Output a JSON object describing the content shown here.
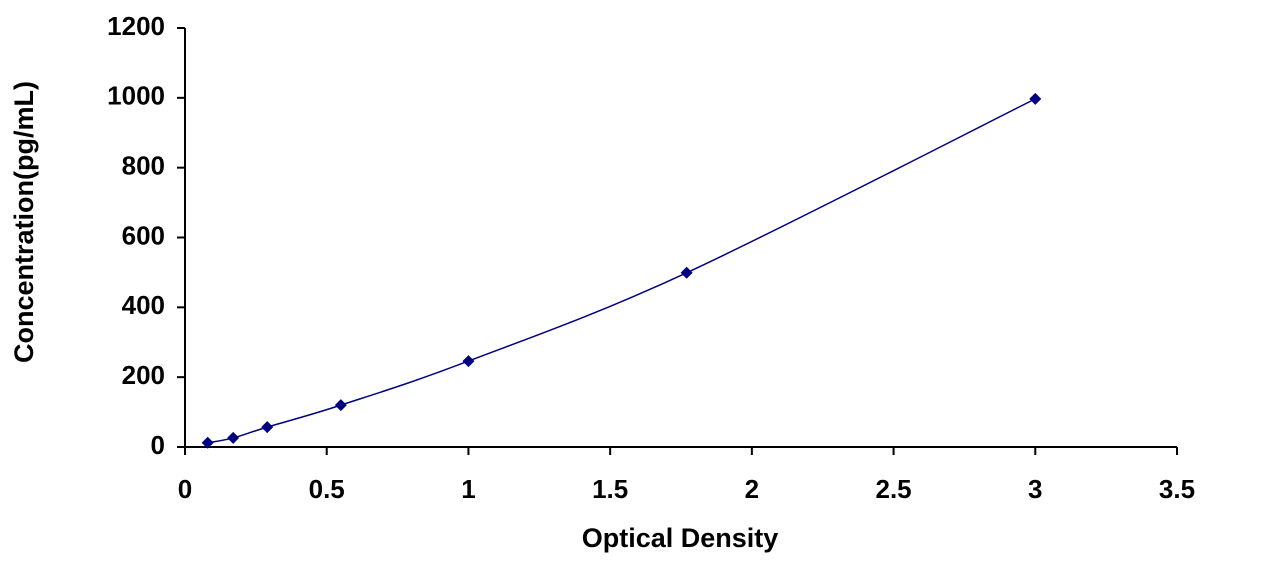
{
  "chart_data": {
    "type": "scatter-line",
    "x_label": "Optical Density",
    "y_label": "Concentration(pg/mL)",
    "x": [
      0.08,
      0.17,
      0.29,
      0.55,
      1.0,
      1.77,
      3.0
    ],
    "series": [
      {
        "color": "#000080",
        "values": [
          12,
          26,
          57,
          120,
          246,
          499,
          997
        ]
      }
    ],
    "xlim": [
      0,
      3.5
    ],
    "xticks": [
      0,
      0.5,
      1,
      1.5,
      2,
      2.5,
      3,
      3.5
    ],
    "ylim": [
      0,
      1200
    ],
    "yticks": [
      0,
      200,
      400,
      600,
      800,
      1000,
      1200
    ],
    "grid": false
  }
}
